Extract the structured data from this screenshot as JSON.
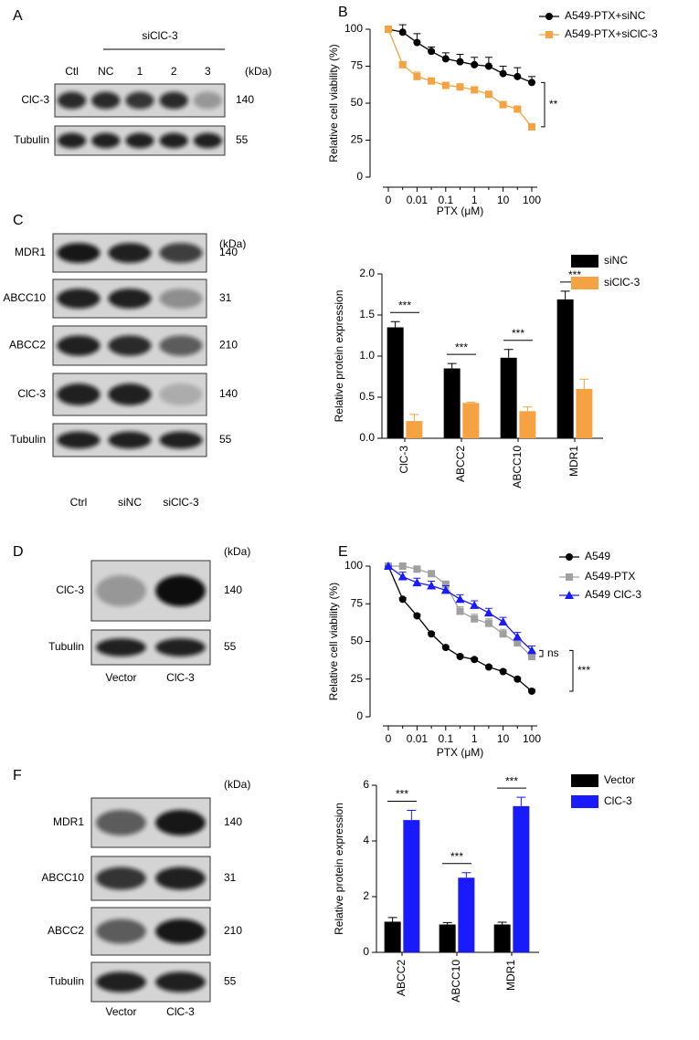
{
  "blots": [
    {
      "panel": "A",
      "group": "siClC-3",
      "unit": "(kDa)",
      "lanes": [
        "Ctl",
        "NC",
        "1",
        "2",
        "3"
      ],
      "rows": [
        {
          "label": "ClC-3",
          "kda": 140
        },
        {
          "label": "Tubulin",
          "kda": 55
        }
      ]
    },
    {
      "panel": "C",
      "unit": "(kDa)",
      "lanes": [
        "Ctrl",
        "siNC",
        "siClC-3"
      ],
      "rows": [
        {
          "label": "MDR1",
          "kda": 140
        },
        {
          "label": "ABCC10",
          "kda": 31
        },
        {
          "label": "ABCC2",
          "kda": 210
        },
        {
          "label": "ClC-3",
          "kda": 140
        },
        {
          "label": "Tubulin",
          "kda": 55
        }
      ]
    },
    {
      "panel": "D",
      "unit": "(kDa)",
      "lanes": [
        "Vector",
        "ClC-3"
      ],
      "rows": [
        {
          "label": "ClC-3",
          "kda": 140
        },
        {
          "label": "Tubulin",
          "kda": 55
        }
      ]
    },
    {
      "panel": "F",
      "unit": "(kDa)",
      "lanes": [
        "Vector",
        "ClC-3"
      ],
      "rows": [
        {
          "label": "MDR1",
          "kda": 140
        },
        {
          "label": "ABCC10",
          "kda": 31
        },
        {
          "label": "ABCC2",
          "kda": 210
        },
        {
          "label": "Tubulin",
          "kda": 55
        }
      ]
    }
  ],
  "chart_data": [
    {
      "type": "line",
      "panel": "B",
      "ylabel": "Relative cell viability (%)",
      "xlabel": "PTX (μM)",
      "categories": [
        "0",
        null,
        "0.01",
        null,
        "0.1",
        null,
        "1",
        null,
        "10",
        null,
        "100"
      ],
      "ylim": [
        0,
        100
      ],
      "yticks": [
        0,
        25,
        50,
        75,
        100
      ],
      "series": [
        {
          "name": "A549-PTX+siNC",
          "color": "#000000",
          "marker": "circle",
          "values": [
            100,
            98,
            91,
            85,
            80,
            78,
            76,
            75,
            70,
            68,
            64
          ],
          "errors": [
            0,
            5,
            6,
            3,
            4,
            5,
            5,
            6,
            5,
            6,
            4
          ]
        },
        {
          "name": "A549-PTX+siClC-3",
          "color": "#f5a342",
          "marker": "square",
          "values": [
            100,
            76,
            68,
            65,
            62,
            61,
            59,
            56,
            49,
            46,
            34
          ],
          "errors": [
            0,
            2,
            3,
            2,
            2,
            2,
            2,
            2,
            2,
            2,
            2
          ]
        }
      ],
      "annotations": [
        "**"
      ]
    },
    {
      "type": "bar",
      "ylabel": "Relative protein expression",
      "categories": [
        "ClC-3",
        "ABCC2",
        "ABCC10",
        "MDR1"
      ],
      "ylim": [
        0,
        2
      ],
      "yticks": [
        {
          "value": 0,
          "label": "0.0"
        },
        0.5,
        {
          "value": 1,
          "label": "1.0"
        },
        1.5,
        {
          "value": 2,
          "label": "2.0"
        }
      ],
      "series": [
        {
          "name": "siNC",
          "color": "#000000",
          "values": [
            1.35,
            0.85,
            0.98,
            1.69
          ],
          "errors": [
            0.07,
            0.06,
            0.1,
            0.1
          ]
        },
        {
          "name": "siClC-3",
          "color": "#f5a342",
          "values": [
            0.21,
            0.43,
            0.33,
            0.6
          ],
          "errors": [
            0.08,
            0.01,
            0.05,
            0.12
          ]
        }
      ],
      "annotations": [
        "***",
        "***",
        "***",
        "***"
      ]
    },
    {
      "type": "line",
      "panel": "E",
      "ylabel": "Relative cell viability (%)",
      "xlabel": "PTX (μM)",
      "categories": [
        "0",
        null,
        "0.01",
        null,
        "0.1",
        null,
        "1",
        null,
        "10",
        null,
        "100"
      ],
      "ylim": [
        0,
        100
      ],
      "yticks": [
        0,
        25,
        50,
        75,
        100
      ],
      "series": [
        {
          "name": "A549",
          "color": "#000000",
          "marker": "circle",
          "values": [
            100,
            78,
            67,
            55,
            46,
            40,
            38,
            33,
            30,
            25,
            17
          ],
          "errors": [
            0,
            1,
            1,
            1,
            1,
            1,
            1,
            1,
            1,
            1,
            1
          ]
        },
        {
          "name": "A549-PTX",
          "color": "#a0a0a0",
          "marker": "square",
          "values": [
            100,
            100,
            98,
            95,
            88,
            70,
            65,
            62,
            55,
            49,
            40
          ],
          "errors": [
            0,
            1,
            2,
            2,
            2,
            3,
            3,
            3,
            3,
            3,
            3
          ]
        },
        {
          "name": "A549 ClC-3",
          "color": "#1a1aff",
          "marker": "triangle",
          "values": [
            100,
            93,
            89,
            87,
            84,
            78,
            74,
            69,
            63,
            53,
            44
          ],
          "errors": [
            0,
            3,
            3,
            3,
            3,
            3,
            3,
            3,
            3,
            3,
            3
          ]
        }
      ],
      "annotations": [
        "ns",
        "***"
      ]
    },
    {
      "type": "bar",
      "ylabel": "Relative protein expression",
      "categories": [
        "ABCC2",
        "ABCC10",
        "MDR1"
      ],
      "ylim": [
        0,
        6
      ],
      "yticks": [
        0,
        2,
        4,
        6
      ],
      "series": [
        {
          "name": "Vector",
          "color": "#000000",
          "values": [
            1.1,
            1.0,
            1.0
          ],
          "errors": [
            0.15,
            0.07,
            0.08
          ]
        },
        {
          "name": "ClC-3",
          "color": "#1a1aff",
          "values": [
            4.75,
            2.68,
            5.25
          ],
          "errors": [
            0.35,
            0.18,
            0.32
          ]
        }
      ],
      "annotations": [
        "***",
        "***",
        "***"
      ]
    }
  ]
}
